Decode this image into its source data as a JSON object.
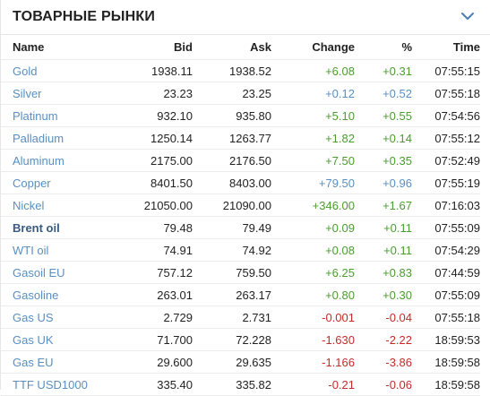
{
  "header": {
    "title": "ТОВАРНЫЕ РЫНКИ"
  },
  "columns": {
    "name": "Name",
    "bid": "Bid",
    "ask": "Ask",
    "change": "Change",
    "pct": "%",
    "time": "Time"
  },
  "rows": [
    {
      "name": "Gold",
      "bid": "1938.11",
      "ask": "1938.52",
      "change": "+6.08",
      "pct": "+0.31",
      "time": "07:55:15",
      "change_color": "pos",
      "pct_color": "pos",
      "bold": false
    },
    {
      "name": "Silver",
      "bid": "23.23",
      "ask": "23.25",
      "change": "+0.12",
      "pct": "+0.52",
      "time": "07:55:18",
      "change_color": "neu",
      "pct_color": "neu",
      "bold": false
    },
    {
      "name": "Platinum",
      "bid": "932.10",
      "ask": "935.80",
      "change": "+5.10",
      "pct": "+0.55",
      "time": "07:54:56",
      "change_color": "pos",
      "pct_color": "pos",
      "bold": false
    },
    {
      "name": "Palladium",
      "bid": "1250.14",
      "ask": "1263.77",
      "change": "+1.82",
      "pct": "+0.14",
      "time": "07:55:12",
      "change_color": "pos",
      "pct_color": "pos",
      "bold": false
    },
    {
      "name": "Aluminum",
      "bid": "2175.00",
      "ask": "2176.50",
      "change": "+7.50",
      "pct": "+0.35",
      "time": "07:52:49",
      "change_color": "pos",
      "pct_color": "pos",
      "bold": false
    },
    {
      "name": "Copper",
      "bid": "8401.50",
      "ask": "8403.00",
      "change": "+79.50",
      "pct": "+0.96",
      "time": "07:55:19",
      "change_color": "neu",
      "pct_color": "neu",
      "bold": false
    },
    {
      "name": "Nickel",
      "bid": "21050.00",
      "ask": "21090.00",
      "change": "+346.00",
      "pct": "+1.67",
      "time": "07:16:03",
      "change_color": "pos",
      "pct_color": "pos",
      "bold": false
    },
    {
      "name": "Brent oil",
      "bid": "79.48",
      "ask": "79.49",
      "change": "+0.09",
      "pct": "+0.11",
      "time": "07:55:09",
      "change_color": "pos",
      "pct_color": "pos",
      "bold": true
    },
    {
      "name": "WTI oil",
      "bid": "74.91",
      "ask": "74.92",
      "change": "+0.08",
      "pct": "+0.11",
      "time": "07:54:29",
      "change_color": "pos",
      "pct_color": "pos",
      "bold": false
    },
    {
      "name": "Gasoil EU",
      "bid": "757.12",
      "ask": "759.50",
      "change": "+6.25",
      "pct": "+0.83",
      "time": "07:44:59",
      "change_color": "pos",
      "pct_color": "pos",
      "bold": false
    },
    {
      "name": "Gasoline",
      "bid": "263.01",
      "ask": "263.17",
      "change": "+0.80",
      "pct": "+0.30",
      "time": "07:55:09",
      "change_color": "pos",
      "pct_color": "pos",
      "bold": false
    },
    {
      "name": "Gas US",
      "bid": "2.729",
      "ask": "2.731",
      "change": "-0.001",
      "pct": "-0.04",
      "time": "07:55:18",
      "change_color": "neg",
      "pct_color": "neg",
      "bold": false
    },
    {
      "name": "Gas UK",
      "bid": "71.700",
      "ask": "72.228",
      "change": "-1.630",
      "pct": "-2.22",
      "time": "18:59:53",
      "change_color": "neg",
      "pct_color": "neg",
      "bold": false
    },
    {
      "name": "Gas EU",
      "bid": "29.600",
      "ask": "29.635",
      "change": "-1.166",
      "pct": "-3.86",
      "time": "18:59:58",
      "change_color": "neg",
      "pct_color": "neg",
      "bold": false
    },
    {
      "name": "TTF USD1000",
      "bid": "335.40",
      "ask": "335.82",
      "change": "-0.21",
      "pct": "-0.06",
      "time": "18:59:58",
      "change_color": "neg",
      "pct_color": "neg",
      "bold": false
    }
  ],
  "colors": {
    "positive": "#4a9d2f",
    "negative": "#c42b2b",
    "neutral": "#5a8fc2",
    "link": "#5a8fc2"
  },
  "icons": {
    "collapse": "chevron-down-icon"
  }
}
